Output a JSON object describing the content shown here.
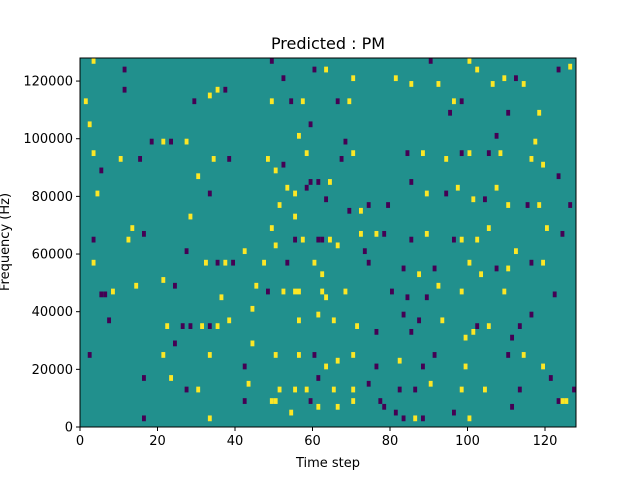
{
  "chart_data": {
    "type": "heatmap",
    "title": "Predicted : PM",
    "xlabel": "Time step",
    "ylabel": "Frequency (Hz)",
    "xlim": [
      0,
      128
    ],
    "ylim": [
      0,
      128000
    ],
    "xticks": [
      0,
      20,
      40,
      60,
      80,
      100,
      120
    ],
    "yticks": [
      0,
      20000,
      40000,
      60000,
      80000,
      100000,
      120000
    ],
    "colors": {
      "background": "#21908d",
      "high": "#fde725",
      "low": "#440154"
    },
    "cells": [
      {
        "t": 3,
        "f": 126000,
        "v": "high"
      },
      {
        "t": 11,
        "f": 123000,
        "v": "low"
      },
      {
        "t": 49,
        "f": 126000,
        "v": "low"
      },
      {
        "t": 52,
        "f": 120000,
        "v": "low"
      },
      {
        "t": 60,
        "f": 123000,
        "v": "low"
      },
      {
        "t": 63,
        "f": 123000,
        "v": "high"
      },
      {
        "t": 70,
        "f": 120000,
        "v": "high"
      },
      {
        "t": 81,
        "f": 120000,
        "v": "high"
      },
      {
        "t": 90,
        "f": 126000,
        "v": "low"
      },
      {
        "t": 100,
        "f": 126000,
        "v": "high"
      },
      {
        "t": 102,
        "f": 123000,
        "v": "high"
      },
      {
        "t": 109,
        "f": 120000,
        "v": "high"
      },
      {
        "t": 112,
        "f": 120000,
        "v": "low"
      },
      {
        "t": 123,
        "f": 123000,
        "v": "low"
      },
      {
        "t": 126,
        "f": 124000,
        "v": "high"
      },
      {
        "t": 1,
        "f": 112000,
        "v": "high"
      },
      {
        "t": 11,
        "f": 116000,
        "v": "low"
      },
      {
        "t": 29,
        "f": 112000,
        "v": "low"
      },
      {
        "t": 33,
        "f": 114000,
        "v": "high"
      },
      {
        "t": 35,
        "f": 116000,
        "v": "high"
      },
      {
        "t": 37,
        "f": 116000,
        "v": "low"
      },
      {
        "t": 49,
        "f": 112000,
        "v": "high"
      },
      {
        "t": 54,
        "f": 112000,
        "v": "low"
      },
      {
        "t": 57,
        "f": 112000,
        "v": "high"
      },
      {
        "t": 66,
        "f": 112000,
        "v": "low"
      },
      {
        "t": 69,
        "f": 112000,
        "v": "high"
      },
      {
        "t": 85,
        "f": 118000,
        "v": "high"
      },
      {
        "t": 92,
        "f": 118000,
        "v": "high"
      },
      {
        "t": 95,
        "f": 108000,
        "v": "low"
      },
      {
        "t": 96,
        "f": 112000,
        "v": "high"
      },
      {
        "t": 98,
        "f": 112000,
        "v": "low"
      },
      {
        "t": 106,
        "f": 118000,
        "v": "high"
      },
      {
        "t": 110,
        "f": 108000,
        "v": "low"
      },
      {
        "t": 114,
        "f": 118000,
        "v": "high"
      },
      {
        "t": 118,
        "f": 108000,
        "v": "high"
      },
      {
        "t": 2,
        "f": 104000,
        "v": "high"
      },
      {
        "t": 18,
        "f": 98000,
        "v": "low"
      },
      {
        "t": 21,
        "f": 98000,
        "v": "high"
      },
      {
        "t": 23,
        "f": 98000,
        "v": "low"
      },
      {
        "t": 27,
        "f": 98000,
        "v": "high"
      },
      {
        "t": 56,
        "f": 100000,
        "v": "high"
      },
      {
        "t": 59,
        "f": 104000,
        "v": "low"
      },
      {
        "t": 68,
        "f": 98000,
        "v": "low"
      },
      {
        "t": 107,
        "f": 100000,
        "v": "low"
      },
      {
        "t": 117,
        "f": 98000,
        "v": "high"
      },
      {
        "t": 3,
        "f": 94000,
        "v": "high"
      },
      {
        "t": 5,
        "f": 88000,
        "v": "low"
      },
      {
        "t": 10,
        "f": 92000,
        "v": "high"
      },
      {
        "t": 15,
        "f": 92000,
        "v": "low"
      },
      {
        "t": 30,
        "f": 86000,
        "v": "high"
      },
      {
        "t": 34,
        "f": 92000,
        "v": "high"
      },
      {
        "t": 38,
        "f": 92000,
        "v": "low"
      },
      {
        "t": 48,
        "f": 92000,
        "v": "high"
      },
      {
        "t": 50,
        "f": 88000,
        "v": "high"
      },
      {
        "t": 52,
        "f": 90000,
        "v": "low"
      },
      {
        "t": 58,
        "f": 94000,
        "v": "high"
      },
      {
        "t": 67,
        "f": 92000,
        "v": "low"
      },
      {
        "t": 70,
        "f": 94000,
        "v": "high"
      },
      {
        "t": 84,
        "f": 94000,
        "v": "low"
      },
      {
        "t": 88,
        "f": 94000,
        "v": "high"
      },
      {
        "t": 94,
        "f": 92000,
        "v": "high"
      },
      {
        "t": 98,
        "f": 94000,
        "v": "low"
      },
      {
        "t": 100,
        "f": 94000,
        "v": "high"
      },
      {
        "t": 105,
        "f": 94000,
        "v": "low"
      },
      {
        "t": 108,
        "f": 94000,
        "v": "high"
      },
      {
        "t": 116,
        "f": 92000,
        "v": "high"
      },
      {
        "t": 119,
        "f": 90000,
        "v": "high"
      },
      {
        "t": 123,
        "f": 86000,
        "v": "low"
      },
      {
        "t": 4,
        "f": 80000,
        "v": "high"
      },
      {
        "t": 33,
        "f": 80000,
        "v": "low"
      },
      {
        "t": 53,
        "f": 82000,
        "v": "high"
      },
      {
        "t": 55,
        "f": 80000,
        "v": "high"
      },
      {
        "t": 58,
        "f": 82000,
        "v": "low"
      },
      {
        "t": 59,
        "f": 84000,
        "v": "low"
      },
      {
        "t": 61,
        "f": 84000,
        "v": "low"
      },
      {
        "t": 64,
        "f": 84000,
        "v": "high"
      },
      {
        "t": 85,
        "f": 84000,
        "v": "low"
      },
      {
        "t": 89,
        "f": 80000,
        "v": "high"
      },
      {
        "t": 94,
        "f": 80000,
        "v": "low"
      },
      {
        "t": 97,
        "f": 82000,
        "v": "high"
      },
      {
        "t": 101,
        "f": 78000,
        "v": "high"
      },
      {
        "t": 104,
        "f": 78000,
        "v": "low"
      },
      {
        "t": 107,
        "f": 82000,
        "v": "high"
      },
      {
        "t": 110,
        "f": 76000,
        "v": "high"
      },
      {
        "t": 115,
        "f": 76000,
        "v": "low"
      },
      {
        "t": 118,
        "f": 76000,
        "v": "high"
      },
      {
        "t": 126,
        "f": 76000,
        "v": "low"
      },
      {
        "t": 28,
        "f": 72000,
        "v": "high"
      },
      {
        "t": 51,
        "f": 76000,
        "v": "high"
      },
      {
        "t": 55,
        "f": 72000,
        "v": "high"
      },
      {
        "t": 63,
        "f": 78000,
        "v": "low"
      },
      {
        "t": 69,
        "f": 74000,
        "v": "low"
      },
      {
        "t": 72,
        "f": 74000,
        "v": "high"
      },
      {
        "t": 74,
        "f": 76000,
        "v": "low"
      },
      {
        "t": 79,
        "f": 76000,
        "v": "low"
      },
      {
        "t": 3,
        "f": 64000,
        "v": "low"
      },
      {
        "t": 12,
        "f": 64000,
        "v": "high"
      },
      {
        "t": 13,
        "f": 68000,
        "v": "high"
      },
      {
        "t": 16,
        "f": 66000,
        "v": "low"
      },
      {
        "t": 27,
        "f": 60000,
        "v": "low"
      },
      {
        "t": 42,
        "f": 60000,
        "v": "high"
      },
      {
        "t": 49,
        "f": 68000,
        "v": "high"
      },
      {
        "t": 50,
        "f": 62000,
        "v": "high"
      },
      {
        "t": 55,
        "f": 64000,
        "v": "low"
      },
      {
        "t": 57,
        "f": 64000,
        "v": "high"
      },
      {
        "t": 61,
        "f": 64000,
        "v": "low"
      },
      {
        "t": 62,
        "f": 64000,
        "v": "low"
      },
      {
        "t": 64,
        "f": 64000,
        "v": "high"
      },
      {
        "t": 66,
        "f": 62000,
        "v": "high"
      },
      {
        "t": 72,
        "f": 66000,
        "v": "high"
      },
      {
        "t": 73,
        "f": 60000,
        "v": "low"
      },
      {
        "t": 76,
        "f": 66000,
        "v": "high"
      },
      {
        "t": 78,
        "f": 66000,
        "v": "low"
      },
      {
        "t": 85,
        "f": 64000,
        "v": "low"
      },
      {
        "t": 89,
        "f": 66000,
        "v": "high"
      },
      {
        "t": 96,
        "f": 64000,
        "v": "low"
      },
      {
        "t": 98,
        "f": 64000,
        "v": "high"
      },
      {
        "t": 102,
        "f": 64000,
        "v": "high"
      },
      {
        "t": 105,
        "f": 68000,
        "v": "high"
      },
      {
        "t": 112,
        "f": 60000,
        "v": "high"
      },
      {
        "t": 120,
        "f": 68000,
        "v": "high"
      },
      {
        "t": 124,
        "f": 66000,
        "v": "low"
      },
      {
        "t": 3,
        "f": 56000,
        "v": "high"
      },
      {
        "t": 32,
        "f": 56000,
        "v": "high"
      },
      {
        "t": 35,
        "f": 56000,
        "v": "low"
      },
      {
        "t": 37,
        "f": 56000,
        "v": "high"
      },
      {
        "t": 39,
        "f": 56000,
        "v": "low"
      },
      {
        "t": 47,
        "f": 56000,
        "v": "high"
      },
      {
        "t": 53,
        "f": 56000,
        "v": "low"
      },
      {
        "t": 60,
        "f": 56000,
        "v": "high"
      },
      {
        "t": 62,
        "f": 52000,
        "v": "high"
      },
      {
        "t": 74,
        "f": 56000,
        "v": "low"
      },
      {
        "t": 83,
        "f": 54000,
        "v": "low"
      },
      {
        "t": 87,
        "f": 52000,
        "v": "high"
      },
      {
        "t": 91,
        "f": 54000,
        "v": "low"
      },
      {
        "t": 100,
        "f": 56000,
        "v": "high"
      },
      {
        "t": 103,
        "f": 52000,
        "v": "high"
      },
      {
        "t": 107,
        "f": 54000,
        "v": "low"
      },
      {
        "t": 110,
        "f": 54000,
        "v": "high"
      },
      {
        "t": 116,
        "f": 56000,
        "v": "low"
      },
      {
        "t": 119,
        "f": 56000,
        "v": "high"
      },
      {
        "t": 5,
        "f": 45000,
        "v": "low"
      },
      {
        "t": 6,
        "f": 45000,
        "v": "low"
      },
      {
        "t": 8,
        "f": 46000,
        "v": "high"
      },
      {
        "t": 14,
        "f": 48000,
        "v": "high"
      },
      {
        "t": 21,
        "f": 50000,
        "v": "high"
      },
      {
        "t": 24,
        "f": 48000,
        "v": "low"
      },
      {
        "t": 36,
        "f": 44000,
        "v": "high"
      },
      {
        "t": 45,
        "f": 48000,
        "v": "high"
      },
      {
        "t": 48,
        "f": 46000,
        "v": "low"
      },
      {
        "t": 52,
        "f": 46000,
        "v": "high"
      },
      {
        "t": 55,
        "f": 46000,
        "v": "high"
      },
      {
        "t": 56,
        "f": 46000,
        "v": "high"
      },
      {
        "t": 62,
        "f": 46000,
        "v": "high"
      },
      {
        "t": 63,
        "f": 44000,
        "v": "high"
      },
      {
        "t": 68,
        "f": 46000,
        "v": "high"
      },
      {
        "t": 80,
        "f": 46000,
        "v": "low"
      },
      {
        "t": 84,
        "f": 44000,
        "v": "low"
      },
      {
        "t": 89,
        "f": 44000,
        "v": "low"
      },
      {
        "t": 92,
        "f": 48000,
        "v": "high"
      },
      {
        "t": 98,
        "f": 46000,
        "v": "high"
      },
      {
        "t": 109,
        "f": 46000,
        "v": "high"
      },
      {
        "t": 122,
        "f": 45000,
        "v": "low"
      },
      {
        "t": 7,
        "f": 36000,
        "v": "low"
      },
      {
        "t": 22,
        "f": 34000,
        "v": "high"
      },
      {
        "t": 26,
        "f": 34000,
        "v": "low"
      },
      {
        "t": 28,
        "f": 34000,
        "v": "low"
      },
      {
        "t": 31,
        "f": 34000,
        "v": "high"
      },
      {
        "t": 33,
        "f": 34000,
        "v": "low"
      },
      {
        "t": 35,
        "f": 34000,
        "v": "high"
      },
      {
        "t": 38,
        "f": 36000,
        "v": "high"
      },
      {
        "t": 44,
        "f": 40000,
        "v": "high"
      },
      {
        "t": 56,
        "f": 36000,
        "v": "high"
      },
      {
        "t": 61,
        "f": 38000,
        "v": "high"
      },
      {
        "t": 65,
        "f": 36000,
        "v": "high"
      },
      {
        "t": 71,
        "f": 34000,
        "v": "high"
      },
      {
        "t": 76,
        "f": 32000,
        "v": "low"
      },
      {
        "t": 83,
        "f": 38000,
        "v": "low"
      },
      {
        "t": 85,
        "f": 32000,
        "v": "low"
      },
      {
        "t": 87,
        "f": 36000,
        "v": "low"
      },
      {
        "t": 93,
        "f": 36000,
        "v": "high"
      },
      {
        "t": 99,
        "f": 30000,
        "v": "high"
      },
      {
        "t": 101,
        "f": 32000,
        "v": "high"
      },
      {
        "t": 102,
        "f": 34000,
        "v": "low"
      },
      {
        "t": 105,
        "f": 34000,
        "v": "high"
      },
      {
        "t": 111,
        "f": 30000,
        "v": "low"
      },
      {
        "t": 113,
        "f": 34000,
        "v": "low"
      },
      {
        "t": 116,
        "f": 38000,
        "v": "low"
      },
      {
        "t": 2,
        "f": 24000,
        "v": "low"
      },
      {
        "t": 21,
        "f": 24000,
        "v": "high"
      },
      {
        "t": 24,
        "f": 28000,
        "v": "low"
      },
      {
        "t": 33,
        "f": 24000,
        "v": "high"
      },
      {
        "t": 42,
        "f": 20000,
        "v": "low"
      },
      {
        "t": 44,
        "f": 28000,
        "v": "high"
      },
      {
        "t": 50,
        "f": 24000,
        "v": "high"
      },
      {
        "t": 56,
        "f": 24000,
        "v": "high"
      },
      {
        "t": 60,
        "f": 24000,
        "v": "low"
      },
      {
        "t": 63,
        "f": 20000,
        "v": "high"
      },
      {
        "t": 66,
        "f": 22000,
        "v": "high"
      },
      {
        "t": 70,
        "f": 24000,
        "v": "high"
      },
      {
        "t": 76,
        "f": 20000,
        "v": "low"
      },
      {
        "t": 82,
        "f": 22000,
        "v": "high"
      },
      {
        "t": 88,
        "f": 20000,
        "v": "low"
      },
      {
        "t": 91,
        "f": 24000,
        "v": "low"
      },
      {
        "t": 99,
        "f": 20000,
        "v": "high"
      },
      {
        "t": 110,
        "f": 24000,
        "v": "low"
      },
      {
        "t": 114,
        "f": 24000,
        "v": "high"
      },
      {
        "t": 119,
        "f": 20000,
        "v": "high"
      },
      {
        "t": 16,
        "f": 16000,
        "v": "low"
      },
      {
        "t": 23,
        "f": 16000,
        "v": "high"
      },
      {
        "t": 27,
        "f": 12000,
        "v": "low"
      },
      {
        "t": 30,
        "f": 12000,
        "v": "high"
      },
      {
        "t": 43,
        "f": 14000,
        "v": "high"
      },
      {
        "t": 49,
        "f": 8000,
        "v": "high"
      },
      {
        "t": 50,
        "f": 8000,
        "v": "high"
      },
      {
        "t": 51,
        "f": 12000,
        "v": "high"
      },
      {
        "t": 55,
        "f": 12000,
        "v": "high"
      },
      {
        "t": 58,
        "f": 12000,
        "v": "high"
      },
      {
        "t": 61,
        "f": 16000,
        "v": "low"
      },
      {
        "t": 65,
        "f": 12000,
        "v": "high"
      },
      {
        "t": 70,
        "f": 12000,
        "v": "high"
      },
      {
        "t": 74,
        "f": 14000,
        "v": "low"
      },
      {
        "t": 77,
        "f": 8000,
        "v": "low"
      },
      {
        "t": 82,
        "f": 12000,
        "v": "low"
      },
      {
        "t": 86,
        "f": 12000,
        "v": "low"
      },
      {
        "t": 90,
        "f": 14000,
        "v": "high"
      },
      {
        "t": 98,
        "f": 12000,
        "v": "high"
      },
      {
        "t": 104,
        "f": 12000,
        "v": "high"
      },
      {
        "t": 113,
        "f": 12000,
        "v": "low"
      },
      {
        "t": 121,
        "f": 16000,
        "v": "low"
      },
      {
        "t": 123,
        "f": 8000,
        "v": "low"
      },
      {
        "t": 124,
        "f": 8000,
        "v": "high"
      },
      {
        "t": 125,
        "f": 8000,
        "v": "high"
      },
      {
        "t": 127,
        "f": 12000,
        "v": "low"
      },
      {
        "t": 16,
        "f": 2000,
        "v": "low"
      },
      {
        "t": 33,
        "f": 2000,
        "v": "high"
      },
      {
        "t": 42,
        "f": 8000,
        "v": "low"
      },
      {
        "t": 54,
        "f": 4000,
        "v": "high"
      },
      {
        "t": 59,
        "f": 8000,
        "v": "low"
      },
      {
        "t": 61,
        "f": 6000,
        "v": "high"
      },
      {
        "t": 66,
        "f": 6000,
        "v": "high"
      },
      {
        "t": 70,
        "f": 8000,
        "v": "high"
      },
      {
        "t": 78,
        "f": 6000,
        "v": "low"
      },
      {
        "t": 81,
        "f": 4000,
        "v": "low"
      },
      {
        "t": 83,
        "f": 2000,
        "v": "low"
      },
      {
        "t": 86,
        "f": 2000,
        "v": "high"
      },
      {
        "t": 88,
        "f": 2000,
        "v": "low"
      },
      {
        "t": 96,
        "f": 4000,
        "v": "low"
      },
      {
        "t": 100,
        "f": 2000,
        "v": "high"
      },
      {
        "t": 111,
        "f": 6000,
        "v": "low"
      }
    ]
  }
}
